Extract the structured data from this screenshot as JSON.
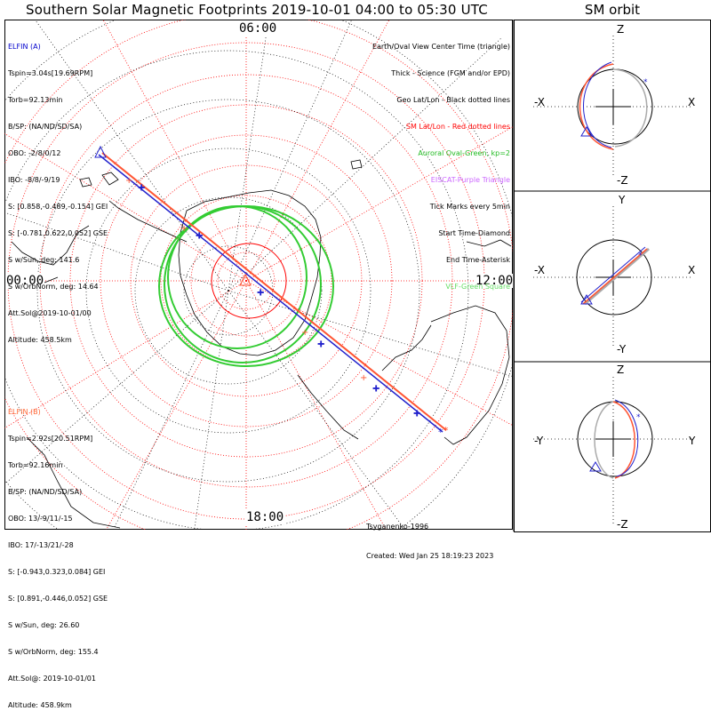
{
  "title": "Southern Solar Magnetic Footprints 2019-10-01 04:00 to 05:30 UTC",
  "orbit_title": "SM orbit",
  "clock_labels": {
    "top": "06:00",
    "bottom": "18:00",
    "left": "00:00",
    "right": "12:00"
  },
  "elfin_a": {
    "name": "ELFIN (A)",
    "color": "#0000cc",
    "lines": [
      "Tspin=3.04s[19.69RPM]",
      "Torb=92.13min",
      "B/SP: (NA/ND/SD/SA)",
      "OBO: -2/8/0/12",
      "IBO: -8/8/-9/19",
      "S: [0.858,-0.489,-0.154] GEI",
      "S: [-0.781,0.622,0.052] GSE",
      "S w/Sun, deg: 141.6",
      "S w/OrbNorm, deg: 14.64",
      "Att.Sol@2019-10-01/00",
      "Altitude: 458.5km"
    ]
  },
  "elfin_b": {
    "name": "ELFIN (B)",
    "color": "#ff6633",
    "lines": [
      "Tspin=2.92s[20.51RPM]",
      "Torb=92.16min",
      "B/SP: (NA/ND/SD/SA)",
      "OBO: 13/-9/11/-15",
      "IBO: 17/-13/21/-28",
      "S: [-0.943,0.323,0.084] GEI",
      "S: [0.891,-0.446,0.052] GSE",
      "S w/Sun, deg: 26.60",
      "S w/OrbNorm, deg: 155.4",
      "Att.Sol@: 2019-10-01/01",
      "Altitude: 458.9km"
    ]
  },
  "legend": [
    {
      "text": "Earth/Oval View Center Time (triangle)",
      "color": "#000000"
    },
    {
      "text": "Thick - Science (FGM and/or EPD)",
      "color": "#000000"
    },
    {
      "text": "Geo Lat/Lon - Black dotted lines",
      "color": "#000000"
    },
    {
      "text": "SM Lat/Lon - Red dotted lines",
      "color": "#ff0000"
    },
    {
      "text": "Auroral Oval-Green, kp=2",
      "color": "#22bb22"
    },
    {
      "text": "EISCAT-Purple Triangle",
      "color": "#cc66ff"
    },
    {
      "text": "Tick Marks every 5min",
      "color": "#000000"
    },
    {
      "text": "Start Time-Diamond",
      "color": "#000000"
    },
    {
      "text": "End Time-Asterisk",
      "color": "#000000"
    },
    {
      "text": "VLF-Green Square",
      "color": "#66dd66"
    }
  ],
  "footer": {
    "credit": "Tsyganenko-1996",
    "created": "Created: Wed Jan 25 18:19:23 2023"
  },
  "orbit_panels": [
    {
      "top": "Z",
      "bottom": "-Z",
      "left": "-X",
      "right": "X"
    },
    {
      "top": "Y",
      "bottom": "-Y",
      "left": "-X",
      "right": "X"
    },
    {
      "top": "Z",
      "bottom": "-Z",
      "left": "-Y",
      "right": "Y"
    }
  ],
  "colors": {
    "grid_red": "#ff0000",
    "geo_black": "#000000",
    "oval_green": "#33cc33",
    "track_a": "#2222cc",
    "track_b": "#ff5533",
    "orbit_gray": "#aaaaaa"
  }
}
